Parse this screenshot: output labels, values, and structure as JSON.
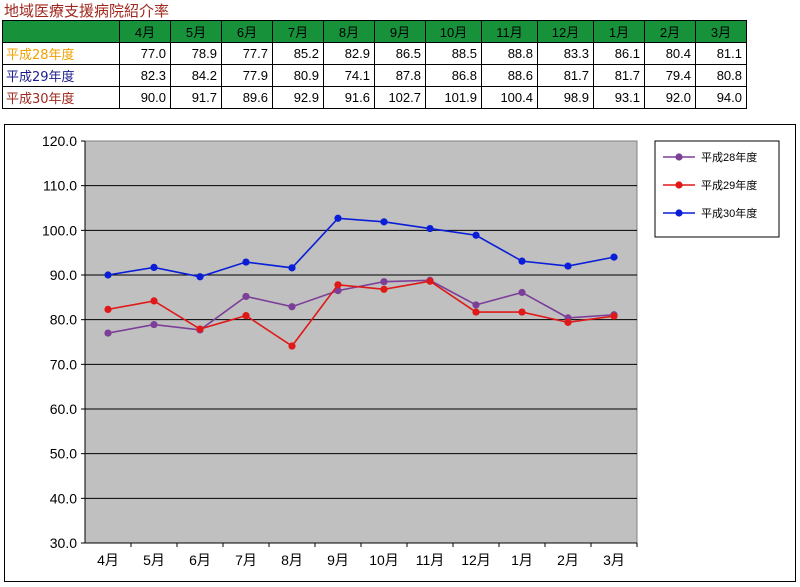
{
  "title": "地域医療支援病院紹介率",
  "table": {
    "months": [
      "4月",
      "5月",
      "6月",
      "7月",
      "8月",
      "9月",
      "10月",
      "11月",
      "12月",
      "1月",
      "2月",
      "3月"
    ],
    "rows": [
      {
        "label": "平成28年度",
        "color": "#f0a000",
        "values": [
          "77.0",
          "78.9",
          "77.7",
          "85.2",
          "82.9",
          "86.5",
          "88.5",
          "88.8",
          "83.3",
          "86.1",
          "80.4",
          "81.1"
        ]
      },
      {
        "label": "平成29年度",
        "color": "#1c1c8c",
        "values": [
          "82.3",
          "84.2",
          "77.9",
          "80.9",
          "74.1",
          "87.8",
          "86.8",
          "88.6",
          "81.7",
          "81.7",
          "79.4",
          "80.8"
        ]
      },
      {
        "label": "平成30年度",
        "color": "#a0281e",
        "values": [
          "90.0",
          "91.7",
          "89.6",
          "92.9",
          "91.6",
          "102.7",
          "101.9",
          "100.4",
          "98.9",
          "93.1",
          "92.0",
          "94.0"
        ]
      }
    ]
  },
  "chart_data": {
    "type": "line",
    "categories": [
      "4月",
      "5月",
      "6月",
      "7月",
      "8月",
      "9月",
      "10月",
      "11月",
      "12月",
      "1月",
      "2月",
      "3月"
    ],
    "ylim": [
      30,
      120
    ],
    "yticks": [
      "30.0",
      "40.0",
      "50.0",
      "60.0",
      "70.0",
      "80.0",
      "90.0",
      "100.0",
      "110.0",
      "120.0"
    ],
    "grid": true,
    "plot_background": "#c0c0c0",
    "legend_position": "right",
    "series": [
      {
        "name": "平成28年度",
        "color": "#7b3f98",
        "values": [
          77.0,
          78.9,
          77.7,
          85.2,
          82.9,
          86.5,
          88.5,
          88.8,
          83.3,
          86.1,
          80.4,
          81.1
        ]
      },
      {
        "name": "平成29年度",
        "color": "#e01818",
        "values": [
          82.3,
          84.2,
          77.9,
          80.9,
          74.1,
          87.8,
          86.8,
          88.6,
          81.7,
          81.7,
          79.4,
          80.8
        ]
      },
      {
        "name": "平成30年度",
        "color": "#0a1ed8",
        "values": [
          90.0,
          91.7,
          89.6,
          92.9,
          91.6,
          102.7,
          101.9,
          100.4,
          98.9,
          93.1,
          92.0,
          94.0
        ]
      }
    ]
  }
}
